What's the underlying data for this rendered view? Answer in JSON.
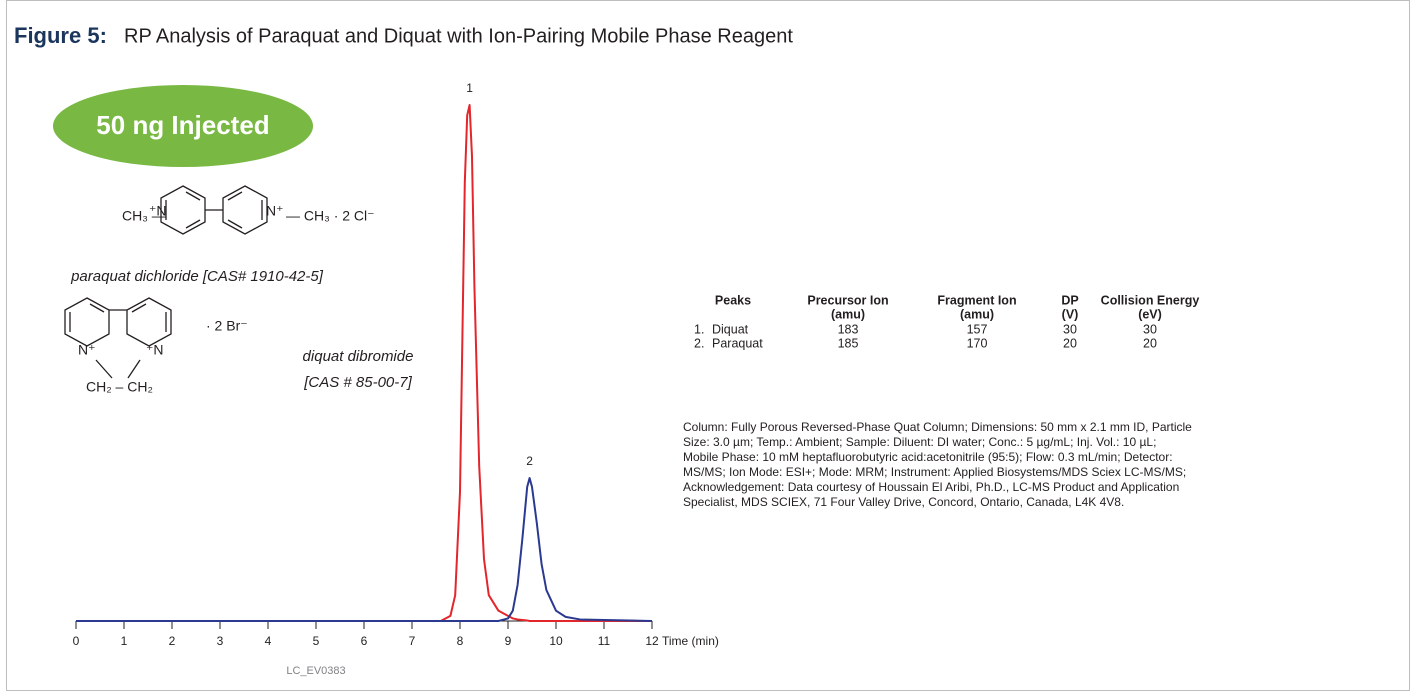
{
  "header": {
    "figure_label": "Figure 5:",
    "title": "RP Analysis of Paraquat and Diquat with Ion-Pairing Mobile Phase Reagent"
  },
  "badge": "50 ng Injected",
  "structures": {
    "paraquat": {
      "labels": [
        "CH₃ —",
        "⁺N",
        "N⁺",
        "— CH₃  ·  2 Cl⁻"
      ],
      "caption": "paraquat dichloride [CAS# 1910-42-5]"
    },
    "diquat": {
      "labels": [
        "·  2 Br⁻",
        "N⁺",
        "⁺N",
        "CH₂ – CH₂"
      ],
      "caption": [
        "diquat dibromide",
        "[CAS # 85-00-7]"
      ]
    }
  },
  "table": {
    "columns": [
      [
        "Peaks"
      ],
      [
        "Precursor Ion",
        "(amu)"
      ],
      [
        "Fragment Ion",
        "(amu)"
      ],
      [
        "DP",
        "(V)"
      ],
      [
        "Collision Energy",
        "(eV)"
      ]
    ],
    "rows": [
      [
        "1.",
        "Diquat",
        183,
        157,
        30,
        30
      ],
      [
        "2.",
        "Paraquat",
        185,
        170,
        20,
        20
      ]
    ]
  },
  "description": [
    "Column: Fully Porous Reversed-Phase Quat Column; Dimensions: 50 mm x 2.1 mm ID, Particle",
    "Size: 3.0 µm; Temp.: Ambient; Sample: Diluent: DI water; Conc.: 5 µg/mL; Inj. Vol.: 10 µL;",
    "Mobile Phase: 10 mM heptafluorobutyric acid:acetonitrile (95:5); Flow: 0.3 mL/min; Detector:",
    "MS/MS; Ion Mode: ESI+; Mode: MRM; Instrument: Applied Biosystems/MDS Sciex LC-MS/MS;",
    "Acknowledgement: Data courtesy of Houssain El Aribi, Ph.D., LC-MS Product and Application",
    "Specialist, MDS SCIEX, 71 Four Valley Drive, Concord, Ontario, Canada, L4K 4V8."
  ],
  "footnote": "LC_EV0383",
  "chart_data": {
    "type": "line",
    "xlabel": "Time (min)",
    "x": [
      0,
      7.6,
      7.8,
      7.9,
      8.0,
      8.05,
      8.1,
      8.15,
      8.2,
      8.25,
      8.3,
      8.4,
      8.5,
      8.6,
      8.8,
      9.0,
      9.1,
      9.2,
      9.3,
      9.4,
      9.45,
      9.5,
      9.6,
      9.7,
      9.8,
      10.0,
      10.2,
      10.5,
      12
    ],
    "series": [
      {
        "name": "1",
        "color": "#e3262b",
        "values": [
          0,
          0,
          1,
          5,
          25,
          55,
          85,
          98,
          100,
          90,
          65,
          30,
          12,
          5,
          2,
          1,
          0.5,
          0.3,
          0.2,
          0.1,
          0,
          0,
          0,
          0,
          0,
          0,
          0,
          0,
          0
        ]
      },
      {
        "name": "2",
        "color": "#2b3990",
        "values": [
          0,
          0,
          0,
          0,
          0,
          0,
          0,
          0,
          0,
          0,
          0,
          0,
          0,
          0,
          0,
          0.5,
          2,
          7,
          16,
          26,
          27.7,
          26,
          19,
          11,
          6,
          2,
          0.8,
          0.3,
          0
        ]
      }
    ],
    "xlim": [
      0,
      12
    ],
    "ylim": [
      0,
      100
    ],
    "xticks": [
      0,
      1,
      2,
      3,
      4,
      5,
      6,
      7,
      8,
      9,
      10,
      11,
      12
    ]
  }
}
